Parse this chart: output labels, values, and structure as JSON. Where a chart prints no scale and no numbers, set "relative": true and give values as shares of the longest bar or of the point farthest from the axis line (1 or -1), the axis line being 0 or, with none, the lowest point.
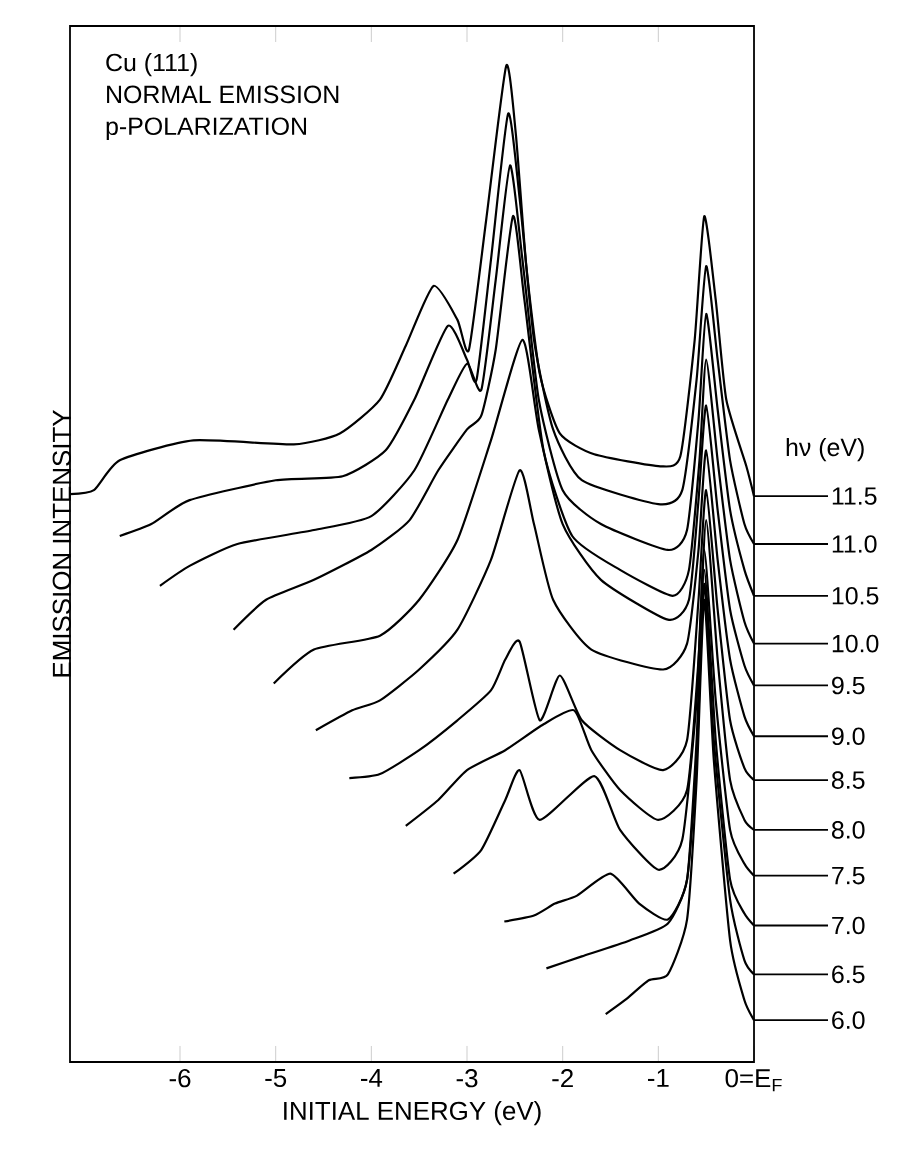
{
  "chart_data": {
    "type": "line",
    "title": "Cu (111)",
    "annotations": [
      "NORMAL EMISSION",
      "p-POLARIZATION"
    ],
    "xlabel": "INITIAL ENERGY (eV)",
    "ylabel": "EMISSION INTENSITY",
    "legend_title": "hν (eV)",
    "relative": true,
    "legend": "right",
    "color": "#000000",
    "xlim": [
      -7.15,
      0
    ],
    "xticks": [
      -6,
      -5,
      -4,
      -3,
      -2,
      -1,
      {
        "value": 0,
        "label": "0=E$_{F}$"
      }
    ],
    "series": [
      {
        "name": "11.5",
        "x": [
          -7.15,
          -6.9,
          -6.63,
          -5.86,
          -4.81,
          -4.33,
          -3.91,
          -3.64,
          -3.35,
          -3.1,
          -2.98,
          -2.8,
          -2.59,
          -2.49,
          -2.38,
          -2.24,
          -2.03,
          -1.67,
          -0.98,
          -0.77,
          -0.62,
          -0.52,
          -0.4,
          -0.29,
          -0.08,
          0
        ],
        "values": [
          0.57,
          0.574,
          0.604,
          0.624,
          0.62,
          0.631,
          0.665,
          0.719,
          0.779,
          0.745,
          0.715,
          0.845,
          1.0,
          0.932,
          0.799,
          0.691,
          0.631,
          0.61,
          0.598,
          0.608,
          0.725,
          0.849,
          0.765,
          0.665,
          0.598,
          0.568
        ]
      },
      {
        "name": "11.0",
        "x": [
          -6.63,
          -6.3,
          -5.9,
          -5.0,
          -4.3,
          -3.85,
          -3.55,
          -3.2,
          -3.0,
          -2.9,
          -2.75,
          -2.57,
          -2.45,
          -2.3,
          -2.1,
          -1.8,
          -1.0,
          -0.75,
          -0.6,
          -0.5,
          -0.38,
          -0.25,
          -0.1,
          0
        ],
        "values": [
          0.528,
          0.54,
          0.564,
          0.584,
          0.588,
          0.614,
          0.665,
          0.739,
          0.705,
          0.685,
          0.805,
          0.952,
          0.867,
          0.725,
          0.635,
          0.584,
          0.56,
          0.574,
          0.685,
          0.799,
          0.705,
          0.604,
          0.54,
          0.52
        ]
      },
      {
        "name": "10.5",
        "x": [
          -6.21,
          -5.9,
          -5.4,
          -4.6,
          -4.0,
          -3.55,
          -3.2,
          -3.0,
          -2.85,
          -2.7,
          -2.55,
          -2.42,
          -2.25,
          -2.0,
          -1.6,
          -0.9,
          -0.7,
          -0.58,
          -0.5,
          -0.38,
          -0.25,
          -0.1,
          0
        ],
        "values": [
          0.478,
          0.498,
          0.52,
          0.534,
          0.548,
          0.594,
          0.665,
          0.701,
          0.675,
          0.785,
          0.9,
          0.805,
          0.665,
          0.574,
          0.54,
          0.514,
          0.534,
          0.645,
          0.751,
          0.655,
          0.554,
          0.494,
          0.468
        ]
      },
      {
        "name": "10.0",
        "x": [
          -5.44,
          -5.1,
          -4.6,
          -4.0,
          -3.6,
          -3.3,
          -3.0,
          -2.85,
          -2.7,
          -2.52,
          -2.4,
          -2.2,
          -1.9,
          -1.4,
          -0.85,
          -0.68,
          -0.57,
          -0.5,
          -0.38,
          -0.25,
          -0.1,
          0
        ],
        "values": [
          0.434,
          0.464,
          0.484,
          0.514,
          0.544,
          0.594,
          0.635,
          0.649,
          0.715,
          0.849,
          0.765,
          0.614,
          0.528,
          0.494,
          0.468,
          0.494,
          0.604,
          0.705,
          0.604,
          0.504,
          0.442,
          0.42
        ]
      },
      {
        "name": "9.5",
        "x": [
          -5.02,
          -4.6,
          -3.91,
          -3.5,
          -3.1,
          -2.75,
          -2.42,
          -2.25,
          -2.0,
          -1.6,
          -0.9,
          -0.68,
          -0.58,
          -0.5,
          -0.38,
          -0.25,
          -0.1,
          0
        ],
        "values": [
          0.38,
          0.414,
          0.428,
          0.464,
          0.524,
          0.624,
          0.725,
          0.635,
          0.54,
          0.484,
          0.444,
          0.464,
          0.564,
          0.659,
          0.554,
          0.454,
          0.398,
          0.378
        ]
      },
      {
        "name": "9.0",
        "x": [
          -4.58,
          -4.2,
          -3.91,
          -3.5,
          -3.1,
          -2.75,
          -2.45,
          -2.3,
          -2.1,
          -1.7,
          -0.95,
          -0.7,
          -0.58,
          -0.5,
          -0.38,
          -0.25,
          -0.1,
          0
        ],
        "values": [
          0.333,
          0.353,
          0.363,
          0.394,
          0.434,
          0.504,
          0.594,
          0.54,
          0.464,
          0.414,
          0.394,
          0.42,
          0.514,
          0.614,
          0.504,
          0.404,
          0.347,
          0.327
        ]
      },
      {
        "name": "8.5",
        "x": [
          -4.23,
          -3.91,
          -3.5,
          -3.1,
          -2.75,
          -2.6,
          -2.45,
          -2.24,
          -2.03,
          -1.8,
          -1.4,
          -0.95,
          -0.7,
          -0.58,
          -0.5,
          -0.38,
          -0.25,
          -0.1,
          0
        ],
        "values": [
          0.285,
          0.289,
          0.313,
          0.343,
          0.373,
          0.404,
          0.422,
          0.343,
          0.388,
          0.343,
          0.313,
          0.293,
          0.323,
          0.464,
          0.574,
          0.454,
          0.343,
          0.295,
          0.283
        ]
      },
      {
        "name": "8.0",
        "x": [
          -3.64,
          -3.3,
          -3.0,
          -2.6,
          -2.2,
          -1.88,
          -1.7,
          -1.4,
          -1.0,
          -0.7,
          -0.58,
          -0.5,
          -0.38,
          -0.25,
          -0.1,
          0
        ],
        "values": [
          0.237,
          0.263,
          0.293,
          0.313,
          0.339,
          0.353,
          0.313,
          0.273,
          0.243,
          0.273,
          0.404,
          0.544,
          0.404,
          0.283,
          0.243,
          0.233
        ]
      },
      {
        "name": "7.5",
        "x": [
          -3.14,
          -2.85,
          -2.6,
          -2.45,
          -2.24,
          -1.67,
          -1.4,
          -1.0,
          -0.75,
          -0.6,
          -0.52,
          -0.4,
          -0.25,
          -0.1,
          0
        ],
        "values": [
          0.189,
          0.213,
          0.263,
          0.293,
          0.243,
          0.287,
          0.233,
          0.193,
          0.223,
          0.363,
          0.514,
          0.363,
          0.233,
          0.199,
          0.187
        ]
      },
      {
        "name": "7.0",
        "x": [
          -2.61,
          -2.3,
          -2.08,
          -1.85,
          -1.5,
          -1.2,
          -0.9,
          -0.7,
          -0.6,
          -0.52,
          -0.4,
          -0.25,
          -0.1,
          0
        ],
        "values": [
          0.141,
          0.147,
          0.159,
          0.167,
          0.189,
          0.159,
          0.143,
          0.183,
          0.323,
          0.494,
          0.323,
          0.183,
          0.149,
          0.137
        ]
      },
      {
        "name": "6.5",
        "x": [
          -2.17,
          -1.8,
          -1.3,
          -0.9,
          -0.7,
          -0.6,
          -0.52,
          -0.42,
          -0.25,
          -0.1,
          0
        ],
        "values": [
          0.094,
          0.106,
          0.122,
          0.139,
          0.183,
          0.303,
          0.48,
          0.323,
          0.163,
          0.102,
          0.088
        ]
      },
      {
        "name": "6.0",
        "x": [
          -1.55,
          -1.35,
          -1.1,
          -0.9,
          -0.7,
          -0.6,
          -0.52,
          -0.42,
          -0.25,
          -0.1,
          0
        ],
        "values": [
          0.048,
          0.062,
          0.082,
          0.088,
          0.143,
          0.283,
          0.464,
          0.303,
          0.122,
          0.062,
          0.042
        ]
      }
    ]
  }
}
